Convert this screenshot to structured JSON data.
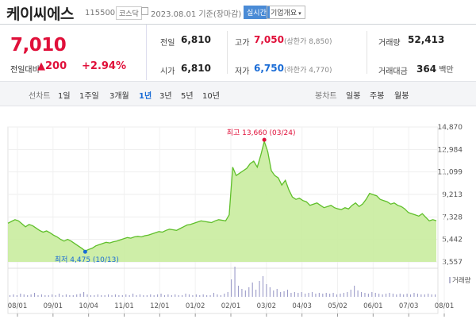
{
  "stock": {
    "name": "케이씨에스",
    "code": "115500",
    "market": "코스닥",
    "date": "2023.08.01 기준(장마감)",
    "realtime": "실시간",
    "company_info": "기업개요",
    "chevron": "▾",
    "price": "7,010",
    "prev_label": "전일대비",
    "change": "▲200",
    "change_pct": "+2.94%"
  },
  "quote": {
    "prev_close_label": "전일",
    "prev_close": "6,810",
    "open_label": "시가",
    "open": "6,810",
    "high_label": "고가",
    "high": "7,050",
    "upper_limit": "(상한가 8,850)",
    "low_label": "저가",
    "low": "6,750",
    "lower_limit": "(하한가 4,770)",
    "volume_label": "거래량",
    "volume": "52,413",
    "amount_label": "거래대금",
    "amount": "364",
    "amount_unit": "백만"
  },
  "tabs": {
    "line_label": "선차트",
    "periods": [
      "1일",
      "1주일",
      "3개월",
      "1년",
      "3년",
      "5년",
      "10년"
    ],
    "active_period": "1년",
    "candle_label": "봉차트",
    "candles": [
      "일봉",
      "주봉",
      "월봉"
    ]
  },
  "colors": {
    "up": "#e0103a",
    "down": "#1a6cd6",
    "area": "#c9ec9e",
    "line": "#5fbf2a"
  },
  "chart_data": {
    "type": "area",
    "y_ticks": [
      "14,870",
      "12,984",
      "11,099",
      "9,213",
      "7,328",
      "5,442",
      "3,557"
    ],
    "ylim": [
      3557,
      14870
    ],
    "x_ticks": [
      "08/01",
      "09/01",
      "10/04",
      "11/01",
      "12/01",
      "01/02",
      "02/01",
      "03/02",
      "04/03",
      "05/02",
      "06/01",
      "07/03",
      "08/01"
    ],
    "values": [
      6800,
      6950,
      7100,
      7000,
      6750,
      6500,
      6700,
      6600,
      6400,
      6200,
      6050,
      6150,
      6000,
      5800,
      5650,
      5450,
      5300,
      5450,
      5300,
      5100,
      4900,
      4700,
      4475,
      4600,
      4700,
      4900,
      5000,
      5100,
      5200,
      5150,
      5250,
      5300,
      5400,
      5500,
      5600,
      5550,
      5650,
      5700,
      5650,
      5750,
      5800,
      5900,
      6000,
      6100,
      6050,
      6200,
      6300,
      6250,
      6200,
      6350,
      6500,
      6650,
      6700,
      6800,
      6900,
      7000,
      6950,
      6900,
      6850,
      7000,
      7100,
      7050,
      7000,
      7500,
      11500,
      10800,
      11000,
      11200,
      11400,
      11800,
      12000,
      11500,
      12500,
      13660,
      12800,
      11200,
      10800,
      10600,
      10000,
      10400,
      9600,
      9000,
      8800,
      8900,
      8700,
      8600,
      8300,
      8400,
      8500,
      8300,
      8100,
      8200,
      8300,
      8100,
      8000,
      7950,
      8100,
      8000,
      8300,
      8500,
      8200,
      8400,
      8800,
      9300,
      9200,
      9100,
      8800,
      8700,
      8600,
      8400,
      8500,
      8300,
      8200,
      8000,
      7700,
      7600,
      7500,
      7400,
      7600,
      7300,
      7000,
      7100,
      7010
    ],
    "max_label": "최고 13,660 (03/24)",
    "min_label": "최저 4,475 (10/13)",
    "volume_label": "거래량"
  }
}
